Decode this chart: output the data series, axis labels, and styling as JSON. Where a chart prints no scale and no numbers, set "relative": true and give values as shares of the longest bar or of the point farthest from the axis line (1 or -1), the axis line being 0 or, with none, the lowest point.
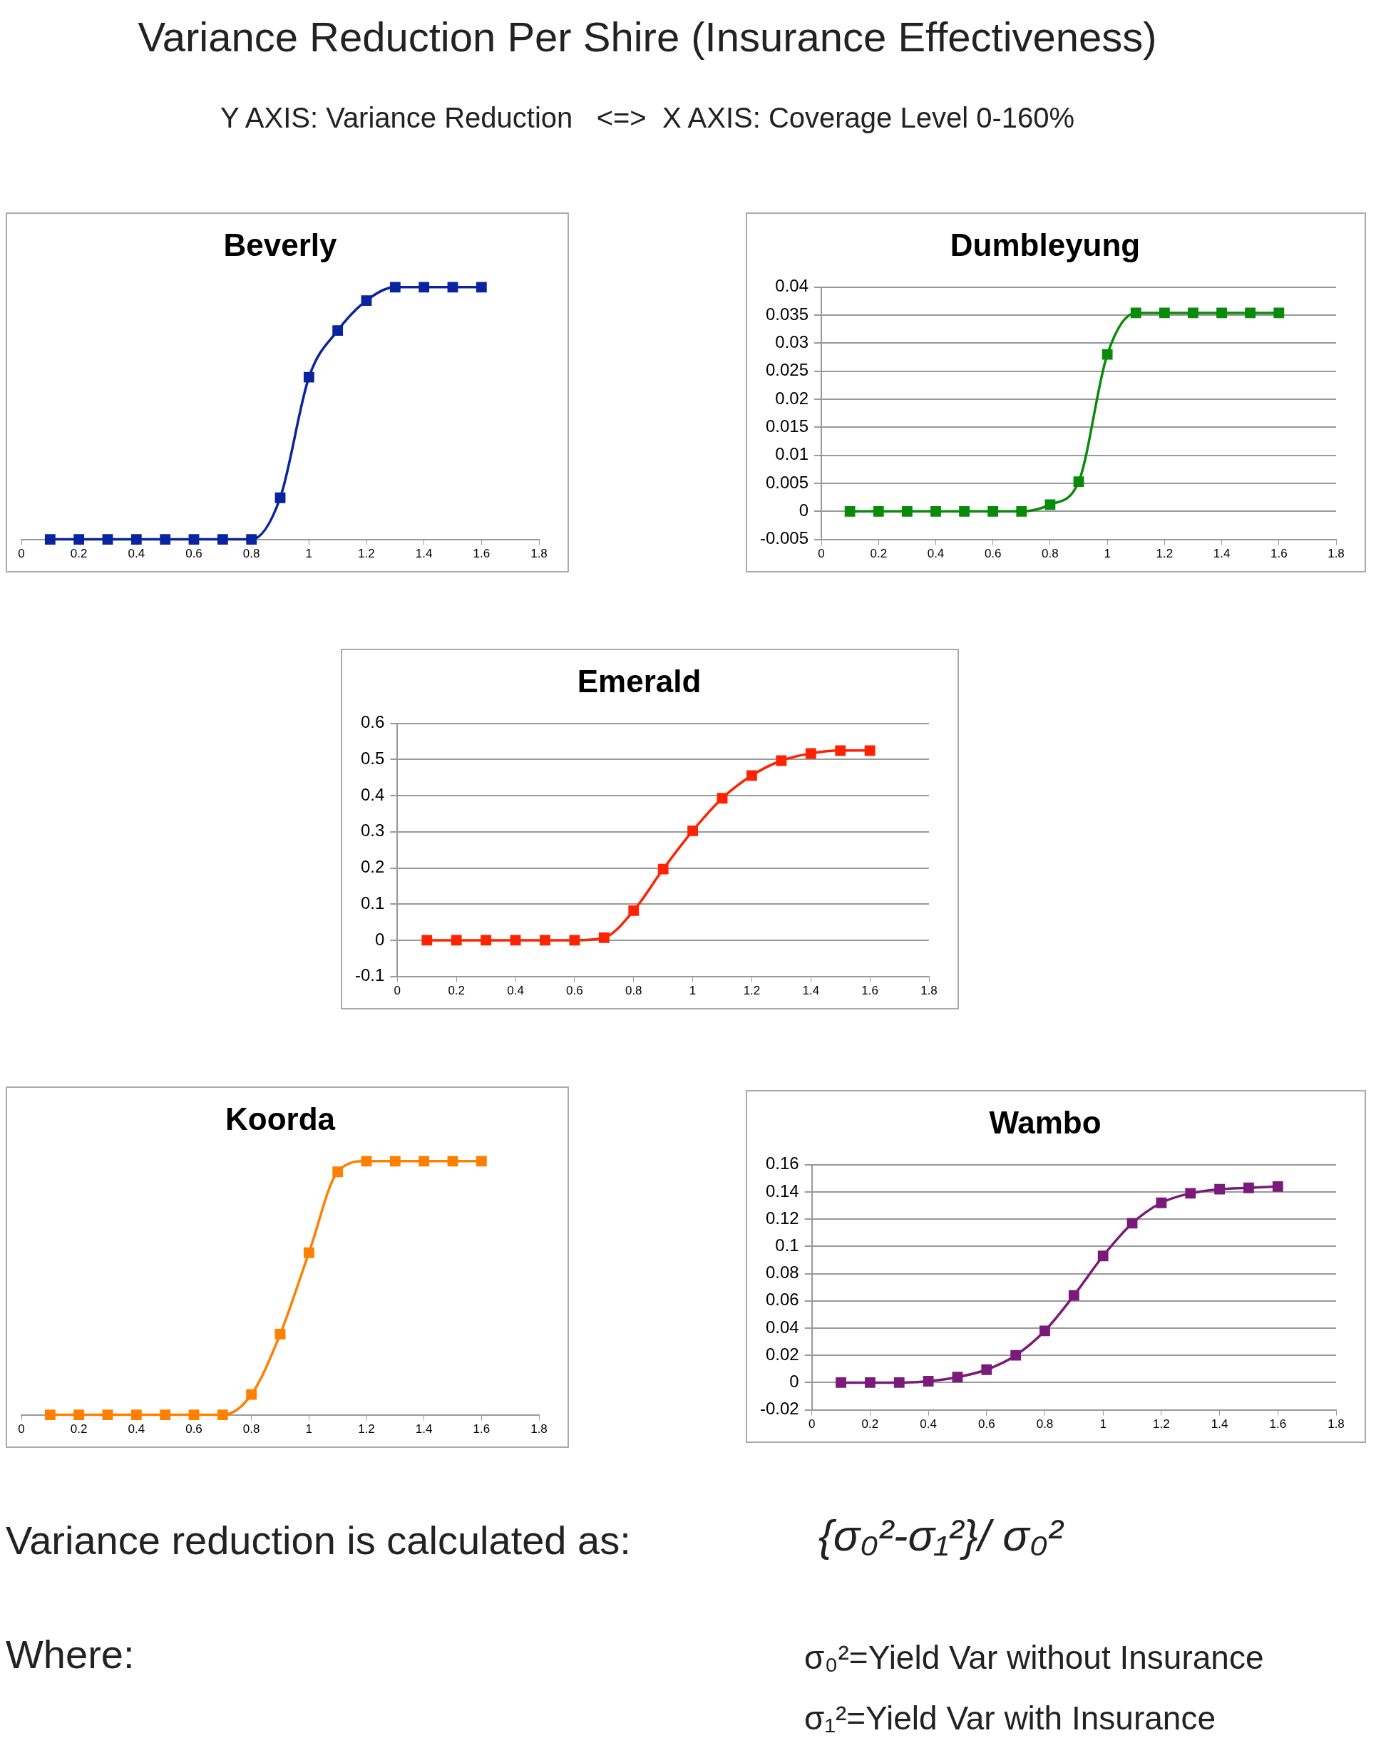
{
  "chart_data": [
    {
      "type": "other",
      "title": "Variance Reduction Per Shire (Insurance Effectiveness)",
      "subtitle": "Y AXIS: Variance Reduction   <=>  X AXIS: Coverage Level 0-160%"
    },
    {
      "type": "line",
      "title": "Beverly",
      "relative": true,
      "x": [
        0.1,
        0.2,
        0.3,
        0.4,
        0.5,
        0.6,
        0.7,
        0.8,
        0.9,
        1.0,
        1.1,
        1.2,
        1.3,
        1.4,
        1.5,
        1.6
      ],
      "values": [
        0,
        0,
        0,
        0,
        0,
        0,
        0,
        0,
        0.165,
        0.643,
        0.828,
        0.947,
        1,
        1,
        1,
        1
      ],
      "color": "#0a24a0",
      "xlim": [
        0,
        1.8
      ],
      "xticks": [
        0,
        0.2,
        0.4,
        0.6,
        0.8,
        1,
        1.2,
        1.4,
        1.6,
        1.8
      ],
      "marker": "square"
    },
    {
      "type": "line",
      "title": "Dumbleyung",
      "x": [
        0.1,
        0.2,
        0.3,
        0.4,
        0.5,
        0.6,
        0.7,
        0.8,
        0.9,
        1.0,
        1.1,
        1.2,
        1.3,
        1.4,
        1.5,
        1.6
      ],
      "values": [
        0,
        0,
        0,
        0,
        0,
        0,
        0,
        0.0012,
        0.0053,
        0.028,
        0.0354,
        0.0354,
        0.0354,
        0.0354,
        0.0354,
        0.0354
      ],
      "color": "#0a8a0a",
      "xlim": [
        0,
        1.8
      ],
      "xticks": [
        0,
        0.2,
        0.4,
        0.6,
        0.8,
        1,
        1.2,
        1.4,
        1.6,
        1.8
      ],
      "ylim": [
        -0.005,
        0.04
      ],
      "yticks": [
        -0.005,
        0,
        0.005,
        0.01,
        0.015,
        0.02,
        0.025,
        0.03,
        0.035,
        0.04
      ],
      "grid": "y",
      "marker": "square"
    },
    {
      "type": "line",
      "title": "Emerald",
      "x": [
        0.1,
        0.2,
        0.3,
        0.4,
        0.5,
        0.6,
        0.7,
        0.8,
        0.9,
        1.0,
        1.1,
        1.2,
        1.3,
        1.4,
        1.5,
        1.6
      ],
      "values": [
        0,
        0,
        0,
        0,
        0,
        0,
        0.007,
        0.082,
        0.197,
        0.303,
        0.393,
        0.456,
        0.497,
        0.517,
        0.525,
        0.525
      ],
      "color": "#ff2200",
      "xlim": [
        0,
        1.8
      ],
      "xticks": [
        0,
        0.2,
        0.4,
        0.6,
        0.8,
        1,
        1.2,
        1.4,
        1.6,
        1.8
      ],
      "ylim": [
        -0.1,
        0.6
      ],
      "yticks": [
        -0.1,
        0,
        0.1,
        0.2,
        0.3,
        0.4,
        0.5,
        0.6
      ],
      "grid": "y",
      "marker": "square"
    },
    {
      "type": "line",
      "title": "Koorda",
      "relative": true,
      "x": [
        0.1,
        0.2,
        0.3,
        0.4,
        0.5,
        0.6,
        0.7,
        0.8,
        0.9,
        1.0,
        1.1,
        1.2,
        1.3,
        1.4,
        1.5,
        1.6
      ],
      "values": [
        0,
        0,
        0,
        0,
        0,
        0,
        0,
        0.08,
        0.318,
        0.639,
        0.958,
        1,
        1,
        1,
        1,
        1
      ],
      "color": "#ff7f00",
      "xlim": [
        0,
        1.8
      ],
      "xticks": [
        0,
        0.2,
        0.4,
        0.6,
        0.8,
        1,
        1.2,
        1.4,
        1.6,
        1.8
      ],
      "marker": "square"
    },
    {
      "type": "line",
      "title": "Wambo",
      "x": [
        0.1,
        0.2,
        0.3,
        0.4,
        0.5,
        0.6,
        0.7,
        0.8,
        0.9,
        1.0,
        1.1,
        1.2,
        1.3,
        1.4,
        1.5,
        1.6
      ],
      "values": [
        0,
        0,
        0,
        0.001,
        0.004,
        0.0095,
        0.02,
        0.038,
        0.064,
        0.093,
        0.117,
        0.132,
        0.139,
        0.142,
        0.143,
        0.144
      ],
      "color": "#7a1a7a",
      "xlim": [
        0,
        1.8
      ],
      "xticks": [
        0,
        0.2,
        0.4,
        0.6,
        0.8,
        1,
        1.2,
        1.4,
        1.6,
        1.8
      ],
      "ylim": [
        -0.02,
        0.16
      ],
      "yticks": [
        -0.02,
        0,
        0.02,
        0.04,
        0.06,
        0.08,
        0.1,
        0.12,
        0.14,
        0.16
      ],
      "grid": "y",
      "marker": "square"
    },
    {
      "type": "other",
      "annotations": [
        "Variance reduction is calculated as:",
        "{σ₀²-σ₁²}/ σ₀²",
        "Where:",
        "σ₀²=Yield Var without Insurance",
        "σ₁²=Yield Var with Insurance"
      ]
    }
  ]
}
